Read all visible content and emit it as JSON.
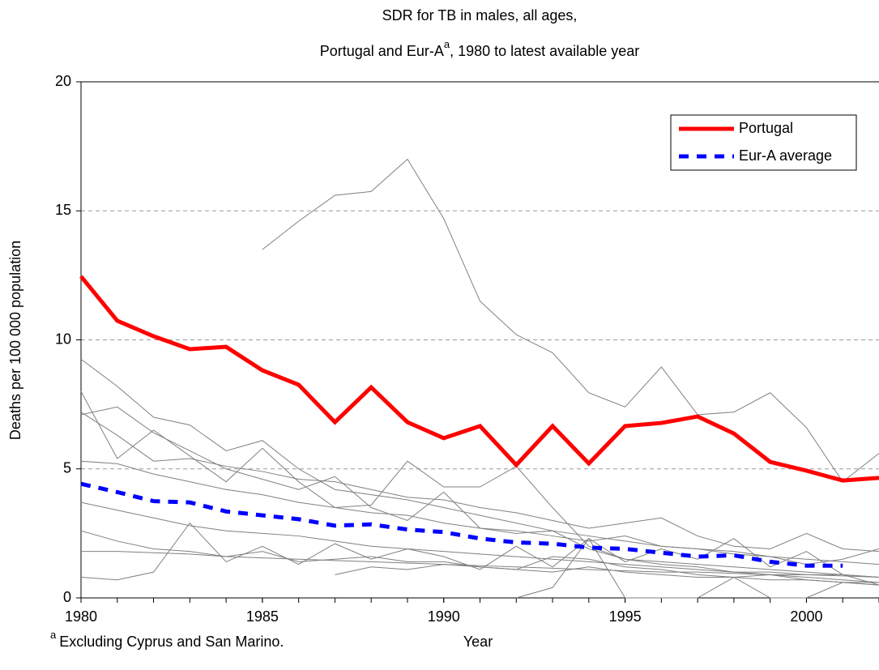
{
  "chart_data": {
    "type": "line",
    "title": "SDR for TB in males, all ages,",
    "subtitle": {
      "before": "Portugal and Eur-A",
      "sup": "a",
      "after": ", 1980 to latest available year"
    },
    "x_label": "Year",
    "y_label": "Deaths per 100 000 population",
    "footnote": {
      "mark": "a",
      "text": "Excluding Cyprus and San Marino."
    },
    "x": [
      1980,
      1981,
      1982,
      1983,
      1984,
      1985,
      1986,
      1987,
      1988,
      1989,
      1990,
      1991,
      1992,
      1993,
      1994,
      1995,
      1996,
      1997,
      1998,
      1999,
      2000,
      2001,
      2002
    ],
    "xlim": [
      1980,
      2002
    ],
    "xticks": [
      1980,
      1985,
      1990,
      1995,
      2000
    ],
    "ylim": [
      0,
      20
    ],
    "yticks": [
      0,
      5,
      10,
      15,
      20
    ],
    "grid": true,
    "legend": "upper right",
    "series": [
      {
        "color": "#808080",
        "values": [
          null,
          null,
          null,
          null,
          null,
          13.5,
          14.6,
          15.6,
          15.75,
          17,
          14.7,
          11.5,
          10.2,
          9.5,
          7.95,
          7.4,
          8.95,
          7.1,
          7.2,
          7.95,
          6.6,
          4.5,
          5.6
        ]
      },
      {
        "color": "#808080",
        "values": [
          9.25,
          8.2,
          7.0,
          6.7,
          5.7,
          6.1,
          5.0,
          4.2,
          4.0,
          3.8,
          3.5,
          3.2,
          2.9,
          2.6,
          2.4,
          2.2,
          2.0,
          1.9,
          1.7,
          1.6,
          1.5,
          1.4,
          1.3
        ]
      },
      {
        "color": "#808080",
        "values": [
          8.0,
          5.4,
          6.5,
          5.5,
          4.5,
          5.8,
          4.5,
          3.5,
          3.6,
          5.3,
          4.3,
          4.3,
          5.1,
          3.5,
          2.0,
          1.5,
          1.4,
          1.3,
          1.2,
          1.1,
          1.0,
          0.9,
          0.8
        ]
      },
      {
        "color": "#808080",
        "values": [
          7.1,
          7.4,
          6.4,
          5.7,
          5.0,
          4.6,
          4.2,
          4.7,
          3.5,
          3.0,
          4.1,
          2.7,
          2.5,
          2.6,
          1.9,
          1.5,
          1.3,
          1.2,
          1.0,
          0.9,
          0.8,
          0.7,
          0.6
        ]
      },
      {
        "color": "#808080",
        "values": [
          7.2,
          6.3,
          5.3,
          5.4,
          5.1,
          4.9,
          4.6,
          4.5,
          4.2,
          3.9,
          3.8,
          3.5,
          3.3,
          3.0,
          2.7,
          2.9,
          3.1,
          2.4,
          2.0,
          1.9,
          2.5,
          1.9,
          1.8
        ]
      },
      {
        "color": "#808080",
        "values": [
          5.3,
          5.2,
          4.8,
          4.5,
          4.2,
          4.0,
          3.7,
          3.5,
          3.3,
          3.2,
          2.9,
          2.7,
          2.6,
          2.4,
          2.2,
          2.4,
          2.0,
          1.9,
          1.8,
          1.6,
          1.3,
          1.5,
          1.9
        ]
      },
      {
        "color": "#808080",
        "values": [
          3.7,
          3.4,
          3.1,
          2.8,
          2.6,
          2.5,
          2.4,
          2.2,
          2.0,
          1.9,
          1.8,
          1.7,
          1.6,
          1.5,
          1.4,
          1.3,
          1.2,
          1.1,
          1.0,
          1.0,
          0.9,
          0.9,
          0.8
        ]
      },
      {
        "color": "#808080",
        "values": [
          2.6,
          2.2,
          1.9,
          1.8,
          1.6,
          1.8,
          1.4,
          1.5,
          1.6,
          1.4,
          1.4,
          1.2,
          1.1,
          1.0,
          1.2,
          1.0,
          0.9,
          0.8,
          0.8,
          0.7,
          0.7,
          0.6,
          0.6
        ]
      },
      {
        "color": "#808080",
        "values": [
          1.8,
          1.8,
          1.75,
          1.7,
          1.6,
          1.55,
          1.5,
          1.45,
          1.4,
          1.35,
          1.3,
          1.25,
          1.2,
          1.15,
          1.1,
          1.05,
          1.0,
          1.0,
          0.95,
          0.9,
          0.9,
          0.85,
          0.8
        ]
      },
      {
        "color": "#808080",
        "values": [
          0.8,
          0.7,
          1.0,
          2.9,
          1.4,
          2.0,
          1.3,
          2.1,
          1.5,
          1.9,
          1.6,
          1.1,
          2.0,
          1.2,
          2.3,
          1.4,
          1.9,
          1.5,
          2.3,
          1.2,
          1.8,
          0.9,
          0.5
        ]
      },
      {
        "color": "#808080",
        "values": [
          null,
          null,
          null,
          null,
          null,
          null,
          null,
          0.9,
          1.2,
          1.1,
          1.3,
          1.2,
          1.1,
          1.6,
          1.5,
          1.2,
          1.1,
          0.9,
          0.8,
          0.9,
          0.7,
          0.6,
          0.5
        ]
      },
      {
        "color": "#808080",
        "values": [
          null,
          null,
          null,
          null,
          null,
          null,
          null,
          null,
          null,
          null,
          null,
          null,
          0,
          0.4,
          2.3,
          0,
          0,
          0,
          0.8,
          0,
          0,
          0.6,
          0.5
        ]
      },
      {
        "name": "Eur-A average",
        "color": "#0000ff",
        "line_style": "dashed",
        "values": [
          4.42,
          4.1,
          3.75,
          3.7,
          3.35,
          3.2,
          3.05,
          2.8,
          2.85,
          2.65,
          2.55,
          2.3,
          2.15,
          2.1,
          1.95,
          1.9,
          1.75,
          1.6,
          1.65,
          1.4,
          1.25,
          1.25,
          null
        ]
      },
      {
        "name": "Portugal",
        "color": "#ff0000",
        "line_style": "solid",
        "values": [
          12.46,
          10.74,
          10.14,
          9.64,
          9.73,
          8.82,
          8.26,
          6.81,
          8.16,
          6.81,
          6.19,
          6.66,
          5.15,
          6.66,
          5.21,
          6.66,
          6.78,
          7.03,
          6.37,
          5.27,
          4.93,
          4.55,
          4.65
        ]
      }
    ]
  }
}
